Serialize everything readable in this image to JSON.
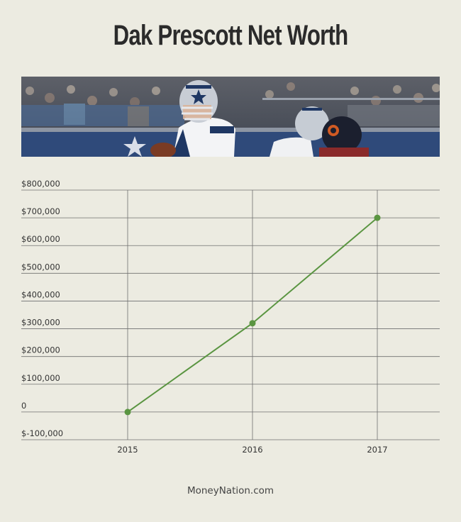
{
  "page": {
    "title": "Dak Prescott Net Worth",
    "footer": "MoneyNation.com"
  },
  "banner": {
    "description": "Football action photo"
  },
  "colors": {
    "background": "#ecebe1",
    "line": "#5a9541",
    "grid": "#6f6f6f"
  },
  "chart_data": {
    "type": "line",
    "title": "Dak Prescott Net Worth",
    "xlabel": "",
    "ylabel": "",
    "categories": [
      "2015",
      "2016",
      "2017"
    ],
    "series": [
      {
        "values": [
          0,
          320000,
          700000
        ]
      }
    ],
    "ylim": [
      -100000,
      800000
    ],
    "yticks": [
      -100000,
      0,
      100000,
      200000,
      300000,
      400000,
      500000,
      600000,
      700000,
      800000
    ],
    "ytick_labels": [
      "$-100,000",
      "0",
      "$100,000",
      "$200,000",
      "$300,000",
      "$400,000",
      "$500,000",
      "$600,000",
      "$700,000",
      "$800,000"
    ],
    "grid": true,
    "legend": "none"
  }
}
